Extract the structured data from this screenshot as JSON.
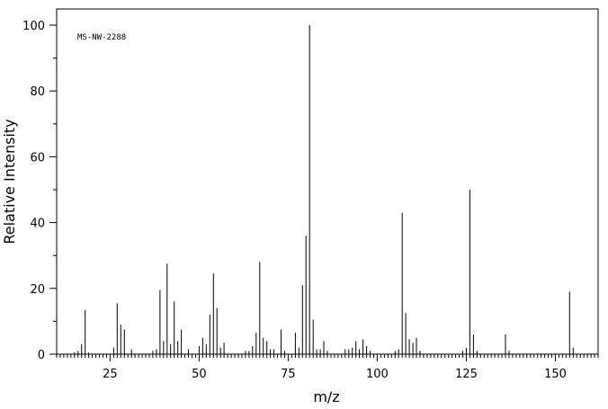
{
  "chart_data": {
    "type": "bar",
    "style": "stick",
    "xlabel": "m/z",
    "ylabel": "Relative Intensity",
    "annotation": "MS-NW-2288",
    "xlim": [
      10,
      162
    ],
    "ylim": [
      0,
      100
    ],
    "x_ticks": [
      25,
      50,
      75,
      100,
      125,
      150
    ],
    "y_ticks": [
      0,
      20,
      40,
      60,
      80,
      100
    ],
    "grid": false,
    "legend": "none",
    "color": "#000000",
    "peaks": [
      {
        "x": 15,
        "y": 0.5
      },
      {
        "x": 16,
        "y": 1
      },
      {
        "x": 17,
        "y": 3
      },
      {
        "x": 18,
        "y": 13.5
      },
      {
        "x": 19,
        "y": 0.5
      },
      {
        "x": 26,
        "y": 2
      },
      {
        "x": 27,
        "y": 15.5
      },
      {
        "x": 28,
        "y": 9
      },
      {
        "x": 29,
        "y": 7.5
      },
      {
        "x": 31,
        "y": 1.5
      },
      {
        "x": 37,
        "y": 1
      },
      {
        "x": 38,
        "y": 1.5
      },
      {
        "x": 39,
        "y": 19.5
      },
      {
        "x": 40,
        "y": 4
      },
      {
        "x": 41,
        "y": 27.5
      },
      {
        "x": 42,
        "y": 3
      },
      {
        "x": 43,
        "y": 16
      },
      {
        "x": 44,
        "y": 4
      },
      {
        "x": 45,
        "y": 7.5
      },
      {
        "x": 47,
        "y": 1.5
      },
      {
        "x": 50,
        "y": 2.5
      },
      {
        "x": 51,
        "y": 5
      },
      {
        "x": 52,
        "y": 3
      },
      {
        "x": 53,
        "y": 12
      },
      {
        "x": 54,
        "y": 24.5
      },
      {
        "x": 55,
        "y": 14
      },
      {
        "x": 56,
        "y": 2
      },
      {
        "x": 57,
        "y": 3.5
      },
      {
        "x": 63,
        "y": 1
      },
      {
        "x": 64,
        "y": 1
      },
      {
        "x": 65,
        "y": 2.5
      },
      {
        "x": 66,
        "y": 6.5
      },
      {
        "x": 67,
        "y": 28
      },
      {
        "x": 68,
        "y": 5
      },
      {
        "x": 69,
        "y": 4
      },
      {
        "x": 70,
        "y": 1.5
      },
      {
        "x": 71,
        "y": 1.5
      },
      {
        "x": 73,
        "y": 7.5
      },
      {
        "x": 74,
        "y": 1
      },
      {
        "x": 77,
        "y": 6.5
      },
      {
        "x": 78,
        "y": 2
      },
      {
        "x": 79,
        "y": 21
      },
      {
        "x": 80,
        "y": 36
      },
      {
        "x": 81,
        "y": 100
      },
      {
        "x": 82,
        "y": 10.5
      },
      {
        "x": 83,
        "y": 1.5
      },
      {
        "x": 84,
        "y": 1.5
      },
      {
        "x": 85,
        "y": 4
      },
      {
        "x": 86,
        "y": 1
      },
      {
        "x": 91,
        "y": 1.5
      },
      {
        "x": 92,
        "y": 1.5
      },
      {
        "x": 93,
        "y": 2
      },
      {
        "x": 94,
        "y": 4
      },
      {
        "x": 95,
        "y": 1.5
      },
      {
        "x": 96,
        "y": 4.5
      },
      {
        "x": 97,
        "y": 2.5
      },
      {
        "x": 98,
        "y": 1
      },
      {
        "x": 105,
        "y": 1
      },
      {
        "x": 106,
        "y": 1.5
      },
      {
        "x": 107,
        "y": 43
      },
      {
        "x": 108,
        "y": 12.5
      },
      {
        "x": 109,
        "y": 4.5
      },
      {
        "x": 110,
        "y": 3.5
      },
      {
        "x": 111,
        "y": 5
      },
      {
        "x": 112,
        "y": 1
      },
      {
        "x": 124,
        "y": 1
      },
      {
        "x": 125,
        "y": 2
      },
      {
        "x": 126,
        "y": 50
      },
      {
        "x": 127,
        "y": 6
      },
      {
        "x": 128,
        "y": 1
      },
      {
        "x": 136,
        "y": 6
      },
      {
        "x": 137,
        "y": 1
      },
      {
        "x": 154,
        "y": 19
      },
      {
        "x": 155,
        "y": 2
      }
    ]
  }
}
